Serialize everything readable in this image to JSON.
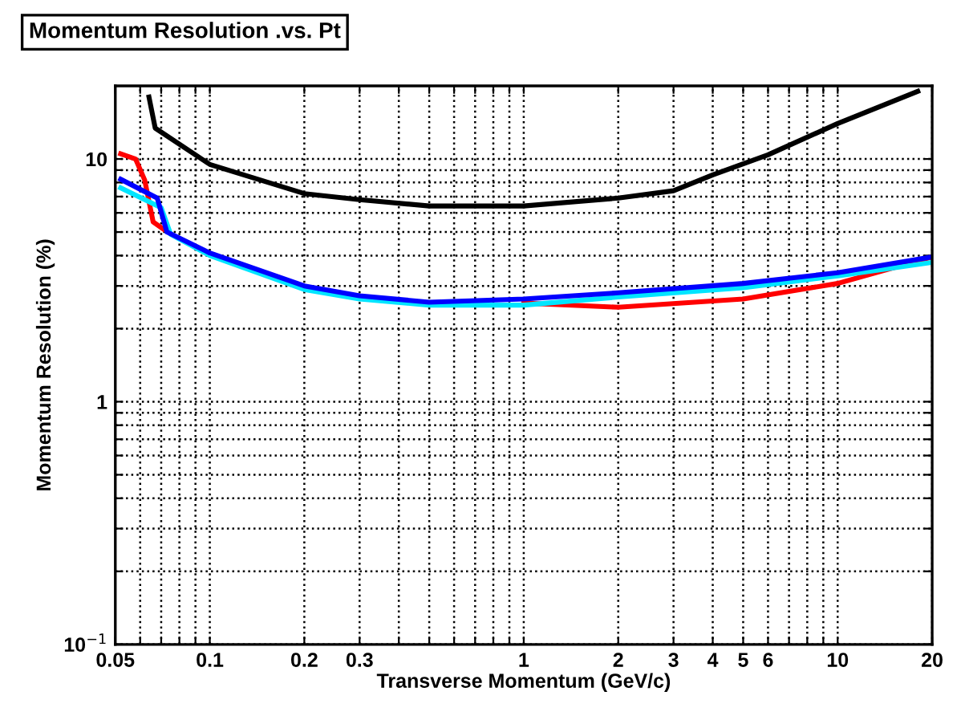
{
  "chart_data": {
    "type": "line",
    "title": "Momentum Resolution .vs. Pt",
    "xlabel": "Transverse Momentum (GeV/c)",
    "ylabel": "Momentum Resolution (%)",
    "log": "xy",
    "grid": true,
    "line_style": "solid",
    "marker": "none",
    "xlim": [
      0.05,
      20
    ],
    "ylim": [
      0.1,
      20
    ],
    "xticks": [
      0.05,
      {
        "value": 0.06,
        "label": null
      },
      {
        "value": 0.07,
        "label": null
      },
      {
        "value": 0.08,
        "label": null
      },
      {
        "value": 0.09,
        "label": null
      },
      0.1,
      0.2,
      0.3,
      {
        "value": 0.4,
        "label": null
      },
      {
        "value": 0.5,
        "label": null
      },
      {
        "value": 0.6,
        "label": null
      },
      {
        "value": 0.7,
        "label": null
      },
      {
        "value": 0.8,
        "label": null
      },
      {
        "value": 0.9,
        "label": null
      },
      1,
      2,
      3,
      4,
      5,
      6,
      {
        "value": 7,
        "label": null
      },
      {
        "value": 8,
        "label": null
      },
      {
        "value": 9,
        "label": null
      },
      10,
      20
    ],
    "yticks": [
      {
        "value": 0.1,
        "label": "10$^{−1}$"
      },
      {
        "value": 0.2,
        "label": null
      },
      {
        "value": 0.3,
        "label": null
      },
      {
        "value": 0.4,
        "label": null
      },
      {
        "value": 0.5,
        "label": null
      },
      {
        "value": 0.6,
        "label": null
      },
      {
        "value": 0.7,
        "label": null
      },
      {
        "value": 0.8,
        "label": null
      },
      {
        "value": 0.9,
        "label": null
      },
      1,
      {
        "value": 2,
        "label": null
      },
      {
        "value": 3,
        "label": null
      },
      {
        "value": 4,
        "label": null
      },
      {
        "value": 5,
        "label": null
      },
      {
        "value": 6,
        "label": null
      },
      {
        "value": 7,
        "label": null
      },
      {
        "value": 8,
        "label": null
      },
      {
        "value": 9,
        "label": null
      },
      10
    ],
    "series": [
      {
        "color": "#000000",
        "x": [
          0.064,
          0.067,
          0.1,
          0.2,
          0.3,
          0.5,
          1,
          2,
          3,
          4,
          6,
          10,
          18
        ],
        "values": [
          18,
          13.4,
          9.5,
          7.2,
          6.8,
          6.4,
          6.4,
          6.9,
          7.4,
          8.6,
          10.4,
          14,
          19
        ]
      },
      {
        "color": "#ff0000",
        "x": [
          0.052,
          0.058,
          0.062,
          0.066,
          0.071,
          0.1,
          0.2,
          0.3,
          0.5,
          1,
          2,
          5,
          10,
          20
        ],
        "values": [
          10.5,
          10,
          8.2,
          5.5,
          5.15,
          null,
          null,
          null,
          null,
          2.55,
          2.45,
          2.65,
          3.07,
          3.95
        ]
      },
      {
        "color": "#00e5ff",
        "x": [
          0.052,
          0.07,
          0.075,
          0.1,
          0.2,
          0.3,
          0.5,
          1,
          2,
          5,
          10,
          20
        ],
        "values": [
          7.6,
          6.3,
          4.9,
          4.0,
          2.9,
          2.65,
          2.5,
          2.5,
          2.7,
          2.95,
          3.3,
          3.75
        ]
      },
      {
        "color": "#0000ff",
        "x": [
          0.052,
          0.068,
          0.073,
          0.1,
          0.2,
          0.3,
          0.5,
          1,
          2,
          5,
          10,
          20
        ],
        "values": [
          8.25,
          6.9,
          5.0,
          4.1,
          3.0,
          2.73,
          2.57,
          2.65,
          2.81,
          3.07,
          3.4,
          3.95
        ]
      }
    ]
  }
}
